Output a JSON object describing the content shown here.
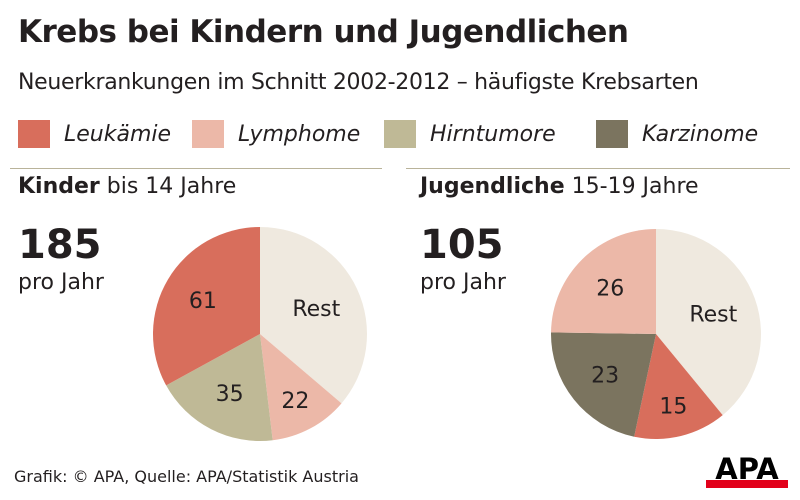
{
  "header": {
    "title": "Krebs bei Kindern und Jugendlichen",
    "subtitle": "Neuerkrankungen im Schnitt 2002-2012 – häufigste Krebsarten"
  },
  "colors": {
    "leukaemie": "#d86e5c",
    "lymphome": "#ecb8a8",
    "hirntumore": "#bfb996",
    "karzinome": "#7b745f",
    "rest": "#efe9df",
    "rule": "#b9b39a"
  },
  "legend": [
    {
      "label": "Leukämie",
      "color": "#d86e5c"
    },
    {
      "label": "Lymphome",
      "color": "#ecb8a8"
    },
    {
      "label": "Hirntumore",
      "color": "#bfb996"
    },
    {
      "label": "Karzinome",
      "color": "#7b745f"
    }
  ],
  "panels": [
    {
      "head_bold": "Kinder",
      "head_rest": " bis 14 Jahre",
      "total": "185",
      "per_year": "pro Jahr"
    },
    {
      "head_bold": "Jugendliche",
      "head_rest": " 15-19 Jahre",
      "total": "105",
      "per_year": "pro Jahr"
    }
  ],
  "chart_data": [
    {
      "type": "pie",
      "title": "Kinder bis 14 Jahre",
      "total": 185,
      "slices": [
        {
          "label": "Rest",
          "value": 67,
          "color": "#efe9df"
        },
        {
          "label": "22",
          "value": 22,
          "color": "#ecb8a8"
        },
        {
          "label": "35",
          "value": 35,
          "color": "#bfb996"
        },
        {
          "label": "61",
          "value": 61,
          "color": "#d86e5c"
        }
      ]
    },
    {
      "type": "pie",
      "title": "Jugendliche 15-19 Jahre",
      "total": 105,
      "slices": [
        {
          "label": "Rest",
          "value": 41,
          "color": "#efe9df"
        },
        {
          "label": "15",
          "value": 15,
          "color": "#d86e5c"
        },
        {
          "label": "23",
          "value": 23,
          "color": "#7b745f"
        },
        {
          "label": "26",
          "value": 26,
          "color": "#ecb8a8"
        }
      ]
    }
  ],
  "footer": {
    "source": "Grafik: © APA, Quelle: APA/Statistik Austria",
    "logo": "APA"
  }
}
